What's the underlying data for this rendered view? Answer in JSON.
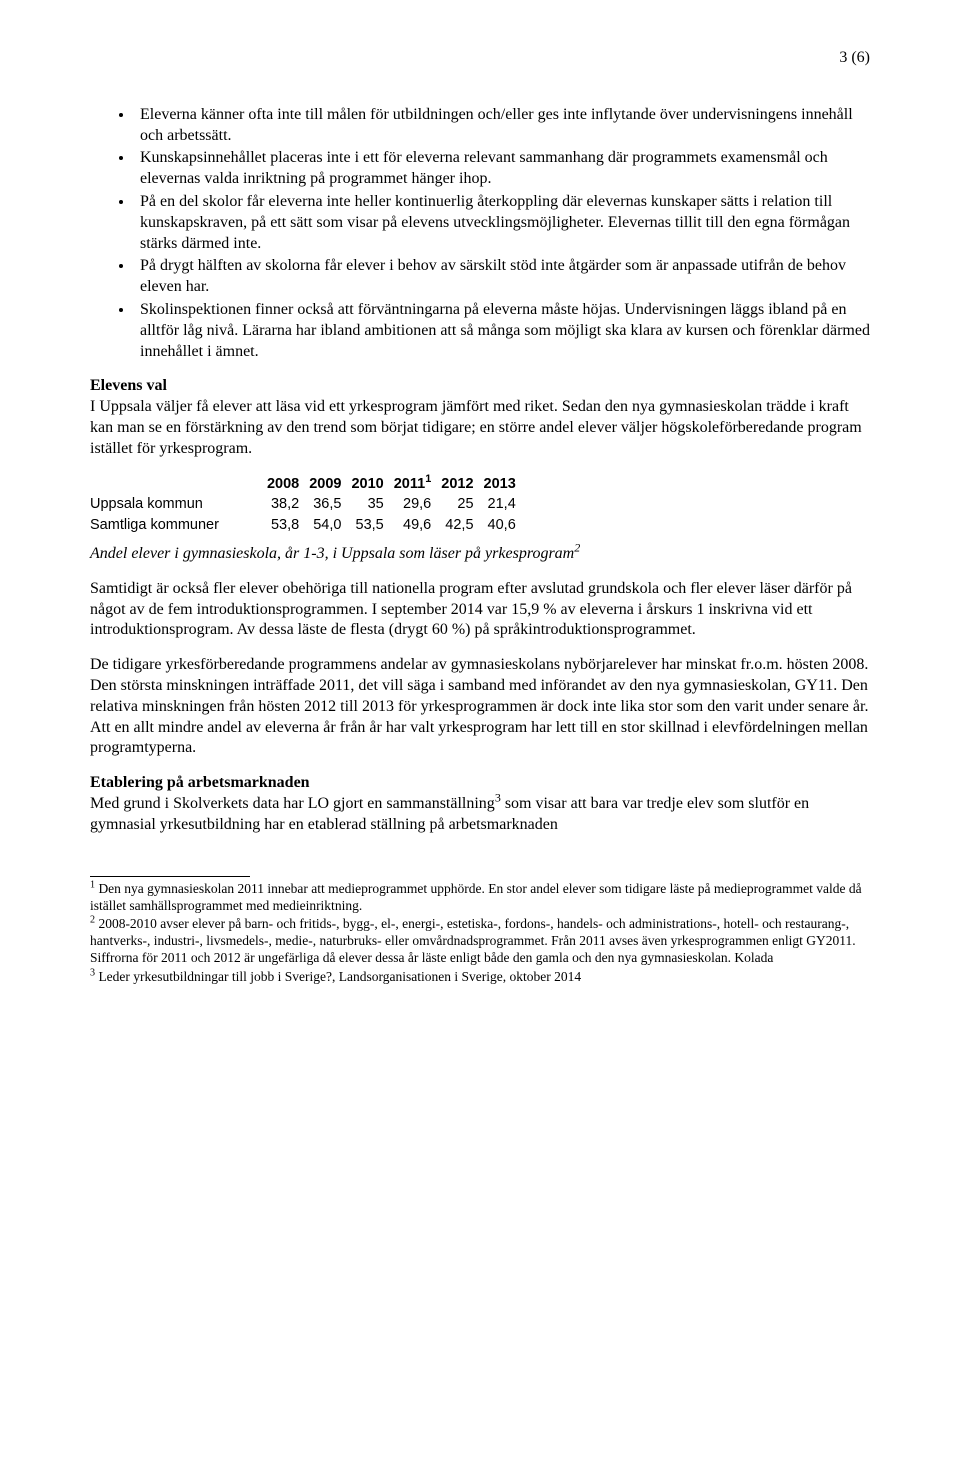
{
  "page_number_label": "3 (6)",
  "bullets": {
    "items": [
      "Eleverna känner ofta inte till målen för utbildningen och/eller ges inte inflytande över undervisningens innehåll och arbetssätt.",
      "Kunskapsinnehållet placeras inte i ett för eleverna relevant sammanhang där programmets examensmål och elevernas valda inriktning på programmet hänger ihop.",
      "På en del skolor får eleverna inte heller kontinuerlig återkoppling där elevernas kunskaper sätts i relation till kunskapskraven, på ett sätt som visar på elevens utvecklingsmöjligheter. Elevernas tillit till den egna förmågan stärks därmed inte.",
      "På drygt hälften av skolorna får elever i behov av särskilt stöd inte åtgärder som är anpassade utifrån de behov eleven har.",
      "Skolinspektionen finner också att förväntningarna på eleverna måste höjas. Undervisningen läggs ibland på en alltför låg nivå. Lärarna har ibland ambitionen att så många som möjligt ska klara av kursen och förenklar därmed innehållet i ämnet."
    ]
  },
  "elevens_val": {
    "heading": "Elevens val",
    "intro": "I Uppsala väljer få elever att läsa vid ett yrkesprogram jämfört med riket. Sedan den nya gymnasieskolan trädde i kraft kan man se en förstärkning av den trend som börjat tidigare; en större andel elever väljer högskoleförberedande program istället för yrkesprogram.",
    "table": {
      "years": [
        "2008",
        "2009",
        "2010",
        "2011",
        "2012",
        "2013"
      ],
      "sup_on_year_index": 3,
      "sup_year_value": "1",
      "rows": [
        {
          "label": "Uppsala kommun",
          "values": [
            "38,2",
            "36,5",
            "35",
            "29,6",
            "25",
            "21,4"
          ]
        },
        {
          "label": "Samtliga kommuner",
          "values": [
            "53,8",
            "54,0",
            "53,5",
            "49,6",
            "42,5",
            "40,6"
          ]
        }
      ]
    },
    "table_caption_pre": "Andel elever i gymnasieskola, år 1-3, i Uppsala som läser på yrkesprogram",
    "table_caption_sup": "2",
    "para2": "Samtidigt är också fler elever obehöriga till nationella program efter avslutad grundskola och fler elever läser därför på något av de fem introduktionsprogrammen. I september 2014 var 15,9 % av eleverna i årskurs 1 inskrivna vid ett introduktionsprogram. Av dessa läste de flesta (drygt 60 %) på språkintroduktionsprogrammet.",
    "para3": "De tidigare yrkesförberedande programmens andelar av gymnasieskolans nybörjarelever har minskat fr.o.m. hösten 2008. Den största minskningen inträffade 2011, det vill säga i samband med införandet av den nya gymnasieskolan, GY11. Den relativa minskningen från hösten 2012 till 2013 för yrkesprogrammen är dock inte lika stor som den varit under senare år. Att en allt mindre andel av eleverna år från år har valt yrkesprogram har lett till en stor skillnad i elevfördelningen mellan programtyperna."
  },
  "etablering": {
    "heading": "Etablering på arbetsmarknaden",
    "para_pre": "Med grund i Skolverkets data har LO gjort en sammanställning",
    "para_sup": "3",
    "para_post": " som visar att bara var tredje elev som slutför en gymnasial yrkesutbildning har en etablerad ställning på arbetsmarknaden"
  },
  "footnotes": {
    "f1_num": "1",
    "f1_text": " Den nya gymnasieskolan 2011 innebar att medieprogrammet upphörde. En stor andel elever som tidigare läste på medieprogrammet valde då istället samhällsprogrammet med medieinriktning.",
    "f2_num": "2",
    "f2_text": " 2008-2010 avser elever på barn- och fritids-, bygg-, el-, energi-, estetiska-, fordons-, handels- och administrations-, hotell- och restaurang-, hantverks-, industri-, livsmedels-, medie-, naturbruks- eller omvårdnadsprogrammet. Från 2011 avses även yrkesprogrammen enligt GY2011. Siffrorna för 2011 och 2012 är ungefärliga då elever dessa år läste enligt både den gamla och den nya gymnasieskolan. Kolada",
    "f3_num": "3",
    "f3_text": " Leder yrkesutbildningar till jobb i Sverige?, Landsorganisationen i Sverige, oktober 2014"
  }
}
